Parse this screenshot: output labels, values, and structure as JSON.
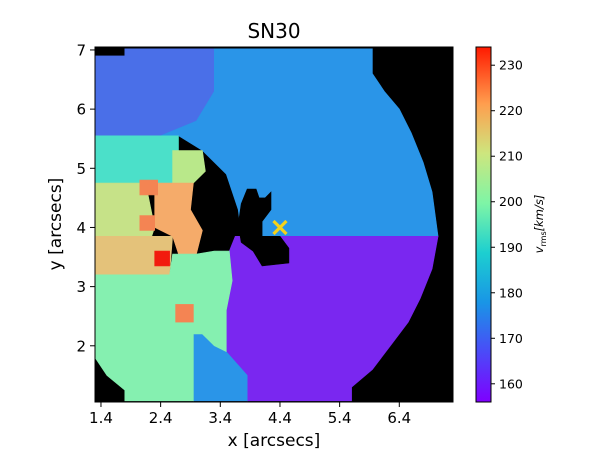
{
  "chart_data": {
    "type": "heatmap",
    "title": "SN30",
    "xlabel": "x [arcsecs]",
    "ylabel": "y [arcsecs]",
    "xlim": [
      1.3,
      7.3
    ],
    "ylim": [
      1.05,
      7.05
    ],
    "x_ticks": [
      "1.4",
      "2.4",
      "3.4",
      "4.4",
      "5.4",
      "6.4"
    ],
    "y_ticks": [
      "2",
      "3",
      "4",
      "5",
      "6",
      "7"
    ],
    "colorbar": {
      "label": "v_rms [km/s]",
      "label_sub": "rms",
      "label_unit": "[km/s]",
      "range": [
        156,
        234
      ],
      "ticks": [
        "160",
        "170",
        "180",
        "190",
        "200",
        "210",
        "220",
        "230"
      ],
      "colormap": "rainbow"
    },
    "background_color": "#000000",
    "marker": {
      "label": "center",
      "x": 4.4,
      "y": 4.0,
      "symbol": "x",
      "color": "#f5d21a"
    },
    "regions": [
      {
        "name": "upper-left bin",
        "value": 168,
        "color": "#4a6fe8",
        "poly": [
          [
            1.3,
            6.9
          ],
          [
            1.8,
            6.9
          ],
          [
            1.8,
            7.02
          ],
          [
            3.3,
            7.02
          ],
          [
            3.3,
            6.3
          ],
          [
            3.0,
            5.8
          ],
          [
            2.4,
            5.55
          ],
          [
            1.3,
            5.55
          ]
        ]
      },
      {
        "name": "upper-right bin",
        "value": 174,
        "color": "#2a95e8",
        "poly": [
          [
            3.3,
            7.02
          ],
          [
            5.95,
            7.02
          ],
          [
            5.95,
            6.6
          ],
          [
            6.15,
            6.3
          ],
          [
            6.4,
            6.0
          ],
          [
            6.6,
            5.6
          ],
          [
            6.8,
            5.1
          ],
          [
            6.95,
            4.6
          ],
          [
            7.05,
            3.85
          ],
          [
            4.1,
            3.85
          ],
          [
            3.75,
            3.9
          ],
          [
            3.7,
            4.3
          ],
          [
            3.5,
            4.9
          ],
          [
            3.1,
            5.3
          ],
          [
            2.7,
            5.55
          ],
          [
            2.4,
            5.55
          ],
          [
            3.0,
            5.8
          ],
          [
            3.3,
            6.3
          ]
        ]
      },
      {
        "name": "lower-right bin",
        "value": 160,
        "color": "#7a27f0",
        "poly": [
          [
            3.65,
            3.85
          ],
          [
            7.05,
            3.85
          ],
          [
            6.95,
            3.3
          ],
          [
            6.75,
            2.8
          ],
          [
            6.55,
            2.4
          ],
          [
            6.25,
            2.0
          ],
          [
            5.95,
            1.6
          ],
          [
            5.6,
            1.3
          ],
          [
            5.6,
            1.07
          ],
          [
            3.85,
            1.07
          ],
          [
            3.85,
            1.5
          ],
          [
            3.5,
            1.9
          ],
          [
            3.5,
            2.6
          ],
          [
            3.6,
            3.1
          ],
          [
            3.55,
            3.6
          ]
        ]
      },
      {
        "name": "lower-middle bin",
        "value": 174,
        "color": "#2a95e8",
        "poly": [
          [
            2.95,
            1.07
          ],
          [
            3.85,
            1.07
          ],
          [
            3.85,
            1.5
          ],
          [
            3.5,
            1.9
          ],
          [
            3.3,
            2.0
          ],
          [
            3.1,
            2.2
          ],
          [
            2.95,
            2.2
          ]
        ]
      },
      {
        "name": "left-top bin",
        "value": 184,
        "color": "#4be0c9",
        "poly": [
          [
            1.3,
            5.55
          ],
          [
            2.4,
            5.55
          ],
          [
            2.7,
            5.55
          ],
          [
            2.7,
            5.3
          ],
          [
            2.6,
            4.75
          ],
          [
            2.2,
            4.75
          ],
          [
            1.3,
            4.75
          ]
        ]
      },
      {
        "name": "green small bin",
        "value": 204,
        "color": "#b9e88a",
        "poly": [
          [
            2.6,
            5.3
          ],
          [
            3.1,
            5.3
          ],
          [
            3.15,
            4.95
          ],
          [
            2.95,
            4.75
          ],
          [
            2.6,
            4.75
          ]
        ]
      },
      {
        "name": "left-middle bin",
        "value": 200,
        "color": "#c6e288",
        "poly": [
          [
            1.3,
            4.75
          ],
          [
            2.15,
            4.75
          ],
          [
            2.3,
            4.0
          ],
          [
            2.25,
            3.85
          ],
          [
            1.3,
            3.85
          ]
        ]
      },
      {
        "name": "left-middle-low bin",
        "value": 208,
        "color": "#e4c27a",
        "poly": [
          [
            1.3,
            3.85
          ],
          [
            2.25,
            3.85
          ],
          [
            2.6,
            3.85
          ],
          [
            2.55,
            3.2
          ],
          [
            2.25,
            3.2
          ],
          [
            1.3,
            3.2
          ]
        ]
      },
      {
        "name": "orange center bin",
        "value": 216,
        "color": "#f5ab6a",
        "poly": [
          [
            2.3,
            4.75
          ],
          [
            2.95,
            4.75
          ],
          [
            2.9,
            4.3
          ],
          [
            3.1,
            3.95
          ],
          [
            3.0,
            3.55
          ],
          [
            2.7,
            3.55
          ],
          [
            2.6,
            3.85
          ],
          [
            2.3,
            4.0
          ]
        ]
      },
      {
        "name": "lower-left bin",
        "value": 188,
        "color": "#85f0b0",
        "poly": [
          [
            1.3,
            3.2
          ],
          [
            2.55,
            3.2
          ],
          [
            2.6,
            3.55
          ],
          [
            3.0,
            3.55
          ],
          [
            3.3,
            3.6
          ],
          [
            3.55,
            3.6
          ],
          [
            3.6,
            3.1
          ],
          [
            3.5,
            2.6
          ],
          [
            3.5,
            1.9
          ],
          [
            3.3,
            2.0
          ],
          [
            3.1,
            2.2
          ],
          [
            2.95,
            2.2
          ],
          [
            2.95,
            1.07
          ],
          [
            1.8,
            1.07
          ],
          [
            1.8,
            1.25
          ],
          [
            1.5,
            1.5
          ],
          [
            1.3,
            1.8
          ]
        ]
      },
      {
        "name": "hot pixel",
        "value": 234,
        "color": "#f21a0e",
        "poly": [
          [
            2.3,
            3.6
          ],
          [
            2.55,
            3.6
          ],
          [
            2.55,
            3.35
          ],
          [
            2.3,
            3.35
          ]
        ]
      },
      {
        "name": "orange pixel a",
        "value": 222,
        "color": "#f48453",
        "poly": [
          [
            2.05,
            4.8
          ],
          [
            2.35,
            4.8
          ],
          [
            2.35,
            4.55
          ],
          [
            2.05,
            4.55
          ]
        ]
      },
      {
        "name": "orange pixel b",
        "value": 222,
        "color": "#f48453",
        "poly": [
          [
            2.05,
            4.2
          ],
          [
            2.3,
            4.2
          ],
          [
            2.3,
            3.95
          ],
          [
            2.05,
            3.95
          ]
        ]
      },
      {
        "name": "orange pixel c",
        "value": 222,
        "color": "#f48453",
        "poly": [
          [
            2.65,
            2.7
          ],
          [
            2.95,
            2.7
          ],
          [
            2.95,
            2.4
          ],
          [
            2.65,
            2.4
          ]
        ]
      },
      {
        "name": "masked hole",
        "value": null,
        "color": "#000000",
        "poly": [
          [
            3.85,
            4.65
          ],
          [
            4.0,
            4.65
          ],
          [
            4.05,
            4.5
          ],
          [
            4.15,
            4.5
          ],
          [
            4.25,
            4.6
          ],
          [
            4.25,
            4.3
          ],
          [
            4.1,
            4.1
          ],
          [
            4.1,
            3.85
          ],
          [
            4.4,
            3.85
          ],
          [
            4.55,
            3.65
          ],
          [
            4.55,
            3.4
          ],
          [
            4.1,
            3.35
          ],
          [
            3.95,
            3.6
          ],
          [
            3.75,
            3.75
          ],
          [
            3.7,
            4.05
          ],
          [
            3.75,
            4.4
          ]
        ]
      }
    ]
  }
}
